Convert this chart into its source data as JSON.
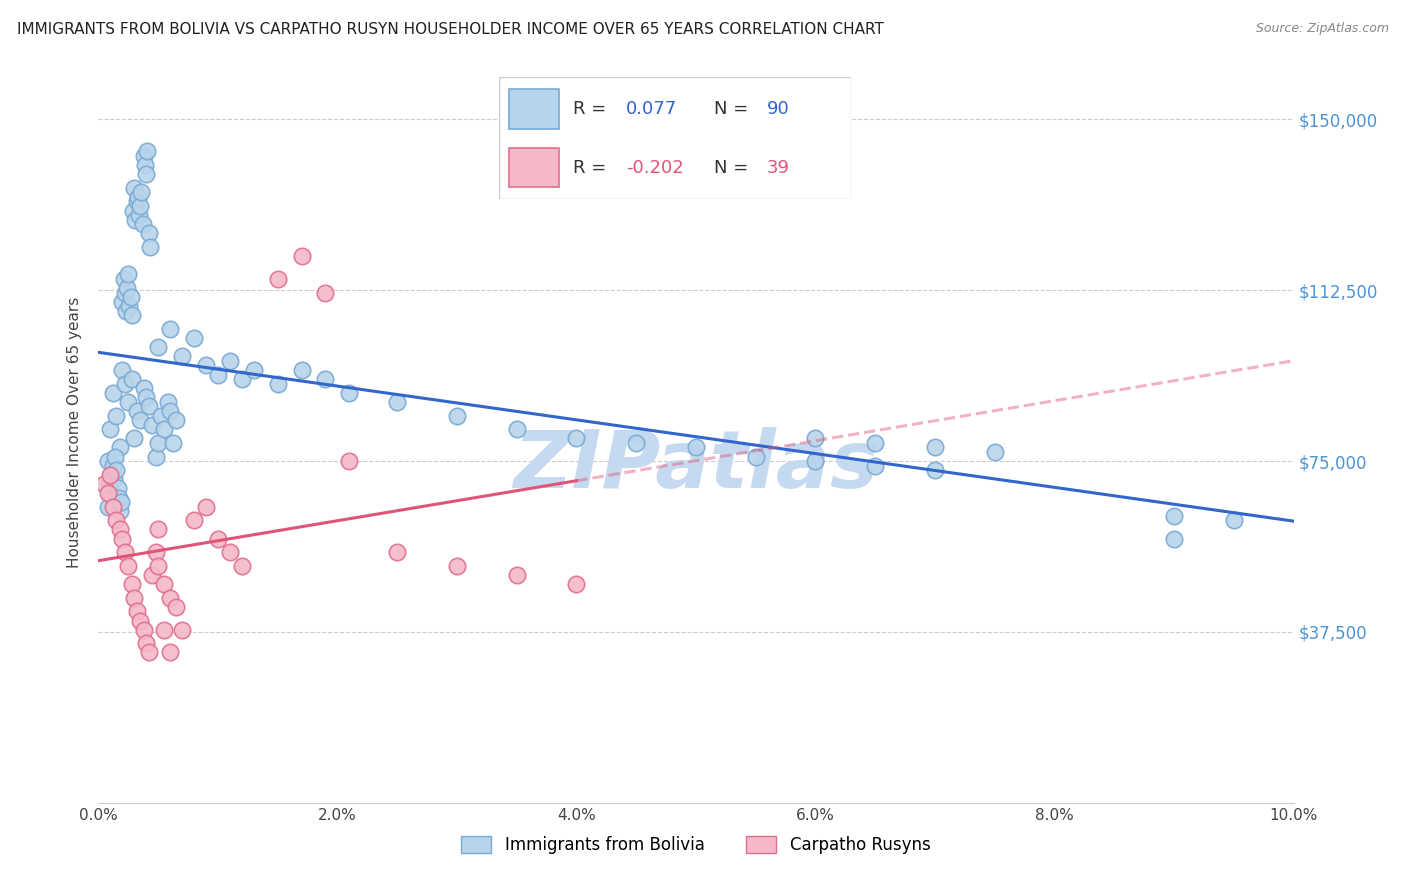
{
  "title": "IMMIGRANTS FROM BOLIVIA VS CARPATHO RUSYN HOUSEHOLDER INCOME OVER 65 YEARS CORRELATION CHART",
  "source": "Source: ZipAtlas.com",
  "ylabel": "Householder Income Over 65 years",
  "ytick_labels": [
    "$37,500",
    "$75,000",
    "$112,500",
    "$150,000"
  ],
  "ytick_values": [
    37500,
    75000,
    112500,
    150000
  ],
  "xlim": [
    0.0,
    0.1
  ],
  "ylim": [
    0,
    162500
  ],
  "bolivia_R": 0.077,
  "bolivia_N": 90,
  "rusyn_R": -0.202,
  "rusyn_N": 39,
  "bolivia_color": "#b8d4ea",
  "bolivia_edge": "#7aaad4",
  "rusyn_color": "#f5b8c8",
  "rusyn_edge": "#e07090",
  "trend_bolivia_color": "#3366cc",
  "trend_rusyn_color": "#e05577",
  "watermark": "ZIPatlas",
  "watermark_color": "#c5daf0",
  "legend_label_bolivia": "Immigrants from Bolivia",
  "legend_label_rusyn": "Carpatho Rusyns",
  "bolivia_x": [
    0.0008,
    0.001,
    0.0012,
    0.0015,
    0.0018,
    0.002,
    0.0022,
    0.0025,
    0.0028,
    0.003,
    0.0032,
    0.0035,
    0.0038,
    0.004,
    0.0042,
    0.0045,
    0.0048,
    0.005,
    0.0052,
    0.0055,
    0.0058,
    0.006,
    0.0062,
    0.0065,
    0.0008,
    0.0009,
    0.001,
    0.0011,
    0.0012,
    0.0013,
    0.0014,
    0.0015,
    0.0016,
    0.0017,
    0.0018,
    0.0019,
    0.002,
    0.0021,
    0.0022,
    0.0023,
    0.0024,
    0.0025,
    0.0026,
    0.0027,
    0.0028,
    0.0029,
    0.003,
    0.0031,
    0.0032,
    0.0033,
    0.0034,
    0.0035,
    0.0036,
    0.0037,
    0.0038,
    0.0039,
    0.004,
    0.0041,
    0.0042,
    0.0043,
    0.005,
    0.006,
    0.007,
    0.008,
    0.009,
    0.01,
    0.011,
    0.012,
    0.013,
    0.015,
    0.017,
    0.019,
    0.021,
    0.025,
    0.03,
    0.035,
    0.04,
    0.045,
    0.05,
    0.055,
    0.06,
    0.065,
    0.07,
    0.06,
    0.065,
    0.07,
    0.075,
    0.09,
    0.09,
    0.095
  ],
  "bolivia_y": [
    75000,
    82000,
    90000,
    85000,
    78000,
    95000,
    92000,
    88000,
    93000,
    80000,
    86000,
    84000,
    91000,
    89000,
    87000,
    83000,
    76000,
    79000,
    85000,
    82000,
    88000,
    86000,
    79000,
    84000,
    65000,
    70000,
    68000,
    72000,
    74000,
    71000,
    76000,
    73000,
    69000,
    67000,
    64000,
    66000,
    110000,
    115000,
    112000,
    108000,
    113000,
    116000,
    109000,
    111000,
    107000,
    130000,
    135000,
    128000,
    132000,
    133000,
    129000,
    131000,
    134000,
    127000,
    142000,
    140000,
    138000,
    143000,
    125000,
    122000,
    100000,
    104000,
    98000,
    102000,
    96000,
    94000,
    97000,
    93000,
    95000,
    92000,
    95000,
    93000,
    90000,
    88000,
    85000,
    82000,
    80000,
    79000,
    78000,
    76000,
    75000,
    74000,
    73000,
    80000,
    79000,
    78000,
    77000,
    63000,
    58000,
    62000
  ],
  "rusyn_x": [
    0.0005,
    0.0008,
    0.001,
    0.0012,
    0.0015,
    0.0018,
    0.002,
    0.0022,
    0.0025,
    0.0028,
    0.003,
    0.0032,
    0.0035,
    0.0038,
    0.004,
    0.0042,
    0.0045,
    0.0048,
    0.005,
    0.0055,
    0.006,
    0.0065,
    0.007,
    0.008,
    0.009,
    0.01,
    0.011,
    0.012,
    0.015,
    0.017,
    0.019,
    0.021,
    0.025,
    0.03,
    0.035,
    0.04,
    0.005,
    0.0055,
    0.006
  ],
  "rusyn_y": [
    70000,
    68000,
    72000,
    65000,
    62000,
    60000,
    58000,
    55000,
    52000,
    48000,
    45000,
    42000,
    40000,
    38000,
    35000,
    33000,
    50000,
    55000,
    60000,
    48000,
    45000,
    43000,
    38000,
    62000,
    65000,
    58000,
    55000,
    52000,
    115000,
    120000,
    112000,
    75000,
    55000,
    52000,
    50000,
    48000,
    52000,
    38000,
    33000
  ]
}
